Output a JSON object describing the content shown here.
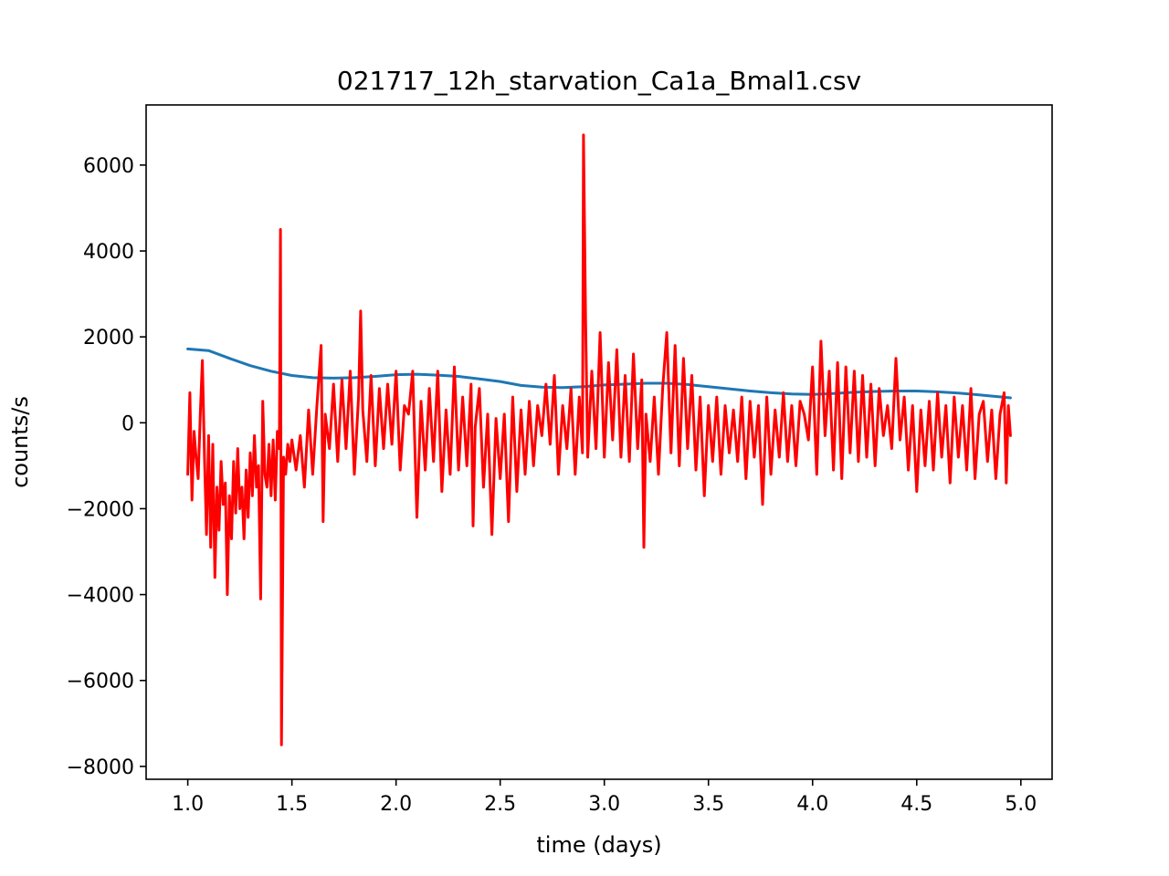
{
  "chart_data": {
    "type": "line",
    "title": "021717_12h_starvation_Ca1a_Bmal1.csv",
    "xlabel": "time (days)",
    "ylabel": "counts/s",
    "xlim": [
      0.8,
      5.15
    ],
    "ylim": [
      -8300,
      7400
    ],
    "x_ticks": [
      1.0,
      1.5,
      2.0,
      2.5,
      3.0,
      3.5,
      4.0,
      4.5,
      5.0
    ],
    "x_tick_labels": [
      "1.0",
      "1.5",
      "2.0",
      "2.5",
      "3.0",
      "3.5",
      "4.0",
      "4.5",
      "5.0"
    ],
    "y_ticks": [
      -8000,
      -6000,
      -4000,
      -2000,
      0,
      2000,
      4000,
      6000
    ],
    "y_tick_labels": [
      "−8000",
      "−6000",
      "−4000",
      "−2000",
      "0",
      "2000",
      "4000",
      "6000"
    ],
    "grid": false,
    "legend": "none",
    "series": [
      {
        "color": "#1f77b4",
        "x": [
          1.0,
          1.1,
          1.2,
          1.3,
          1.4,
          1.5,
          1.6,
          1.7,
          1.8,
          1.9,
          2.0,
          2.1,
          2.2,
          2.3,
          2.4,
          2.5,
          2.6,
          2.7,
          2.8,
          2.9,
          3.0,
          3.1,
          3.2,
          3.3,
          3.4,
          3.5,
          3.6,
          3.7,
          3.8,
          3.9,
          4.0,
          4.1,
          4.2,
          4.3,
          4.4,
          4.5,
          4.6,
          4.7,
          4.8,
          4.95
        ],
        "y": [
          1720,
          1680,
          1500,
          1330,
          1200,
          1100,
          1050,
          1040,
          1050,
          1080,
          1120,
          1130,
          1110,
          1080,
          1020,
          960,
          870,
          830,
          820,
          840,
          880,
          900,
          920,
          920,
          890,
          840,
          790,
          740,
          700,
          670,
          660,
          680,
          710,
          730,
          740,
          740,
          720,
          690,
          650,
          580
        ]
      },
      {
        "color": "#ff0000",
        "x": [
          1.0,
          1.01,
          1.02,
          1.03,
          1.04,
          1.05,
          1.06,
          1.07,
          1.08,
          1.09,
          1.1,
          1.11,
          1.12,
          1.13,
          1.14,
          1.15,
          1.16,
          1.17,
          1.18,
          1.19,
          1.2,
          1.21,
          1.22,
          1.23,
          1.24,
          1.25,
          1.26,
          1.27,
          1.28,
          1.29,
          1.3,
          1.31,
          1.32,
          1.33,
          1.34,
          1.35,
          1.36,
          1.37,
          1.38,
          1.39,
          1.4,
          1.41,
          1.42,
          1.43,
          1.44,
          1.445,
          1.45,
          1.46,
          1.47,
          1.48,
          1.49,
          1.5,
          1.52,
          1.54,
          1.56,
          1.58,
          1.6,
          1.62,
          1.64,
          1.65,
          1.66,
          1.68,
          1.7,
          1.72,
          1.74,
          1.76,
          1.78,
          1.8,
          1.82,
          1.83,
          1.84,
          1.86,
          1.88,
          1.9,
          1.92,
          1.94,
          1.96,
          1.98,
          2.0,
          2.02,
          2.04,
          2.06,
          2.08,
          2.1,
          2.12,
          2.14,
          2.16,
          2.18,
          2.2,
          2.22,
          2.24,
          2.26,
          2.28,
          2.3,
          2.32,
          2.34,
          2.36,
          2.37,
          2.38,
          2.4,
          2.42,
          2.44,
          2.46,
          2.48,
          2.5,
          2.52,
          2.54,
          2.56,
          2.58,
          2.6,
          2.62,
          2.64,
          2.66,
          2.68,
          2.7,
          2.72,
          2.74,
          2.76,
          2.78,
          2.8,
          2.82,
          2.84,
          2.86,
          2.88,
          2.895,
          2.9,
          2.91,
          2.92,
          2.94,
          2.96,
          2.98,
          3.0,
          3.02,
          3.04,
          3.06,
          3.08,
          3.1,
          3.12,
          3.14,
          3.16,
          3.18,
          3.19,
          3.2,
          3.22,
          3.24,
          3.26,
          3.28,
          3.3,
          3.32,
          3.34,
          3.36,
          3.38,
          3.4,
          3.42,
          3.44,
          3.46,
          3.48,
          3.5,
          3.52,
          3.54,
          3.56,
          3.58,
          3.6,
          3.62,
          3.64,
          3.66,
          3.68,
          3.7,
          3.72,
          3.74,
          3.76,
          3.78,
          3.8,
          3.82,
          3.84,
          3.86,
          3.88,
          3.9,
          3.92,
          3.94,
          3.96,
          3.98,
          4.0,
          4.02,
          4.04,
          4.06,
          4.08,
          4.1,
          4.12,
          4.14,
          4.16,
          4.18,
          4.2,
          4.22,
          4.24,
          4.26,
          4.28,
          4.3,
          4.32,
          4.34,
          4.36,
          4.38,
          4.4,
          4.42,
          4.44,
          4.46,
          4.48,
          4.5,
          4.52,
          4.54,
          4.56,
          4.58,
          4.6,
          4.62,
          4.64,
          4.66,
          4.68,
          4.7,
          4.72,
          4.74,
          4.76,
          4.78,
          4.8,
          4.82,
          4.84,
          4.86,
          4.88,
          4.9,
          4.92,
          4.93,
          4.94,
          4.95
        ],
        "y": [
          -1200,
          700,
          -1800,
          -200,
          -800,
          -1300,
          200,
          1450,
          -800,
          -2600,
          -300,
          -2900,
          -500,
          -3600,
          -1500,
          -2500,
          -900,
          -1900,
          -1400,
          -4000,
          -1700,
          -2700,
          -900,
          -2100,
          -600,
          -2000,
          -1500,
          -2700,
          -1100,
          -2200,
          -700,
          -1700,
          -300,
          -1500,
          -1000,
          -4100,
          500,
          -1200,
          -1500,
          -500,
          -1700,
          -400,
          -1800,
          -200,
          -600,
          4500,
          -7500,
          -800,
          -1200,
          -500,
          -900,
          -400,
          -1100,
          -300,
          -1500,
          300,
          -1200,
          400,
          1800,
          -2300,
          200,
          -600,
          900,
          -900,
          1000,
          -600,
          1200,
          -1200,
          600,
          2600,
          300,
          -900,
          1100,
          -1000,
          800,
          -600,
          900,
          -500,
          1200,
          -1100,
          400,
          200,
          1200,
          -2200,
          500,
          -1100,
          800,
          -900,
          1200,
          -1600,
          300,
          -1200,
          1300,
          -1100,
          600,
          -1000,
          900,
          -2400,
          -100,
          800,
          -1500,
          200,
          -2600,
          100,
          -1300,
          200,
          -2300,
          600,
          -1600,
          300,
          -1200,
          500,
          -1000,
          400,
          -300,
          900,
          -500,
          1100,
          -1200,
          400,
          -600,
          800,
          -1200,
          600,
          -700,
          6700,
          2400,
          -800,
          1200,
          -600,
          2100,
          -800,
          1400,
          -400,
          1700,
          -800,
          1100,
          -900,
          1600,
          -600,
          1000,
          -2900,
          200,
          -900,
          600,
          -1200,
          800,
          2100,
          -700,
          1800,
          -1000,
          1500,
          -600,
          1100,
          -1100,
          600,
          -1700,
          400,
          -900,
          600,
          -1200,
          400,
          -700,
          300,
          -900,
          600,
          -1300,
          500,
          -800,
          400,
          -1900,
          600,
          -1200,
          300,
          -800,
          700,
          -900,
          400,
          -1000,
          500,
          200,
          -400,
          1300,
          -1200,
          1900,
          -300,
          1200,
          -1100,
          1400,
          -1300,
          1300,
          -700,
          1200,
          -900,
          1100,
          -800,
          900,
          -1000,
          800,
          -300,
          400,
          -600,
          1500,
          -400,
          600,
          -1100,
          400,
          -1600,
          300,
          -1000,
          500,
          -1100,
          700,
          -800,
          400,
          -1400,
          600,
          -800,
          400,
          -1100,
          800,
          -1300,
          200,
          500,
          -900,
          300,
          -1300,
          200,
          700,
          -1400,
          400,
          -300
        ]
      }
    ]
  }
}
